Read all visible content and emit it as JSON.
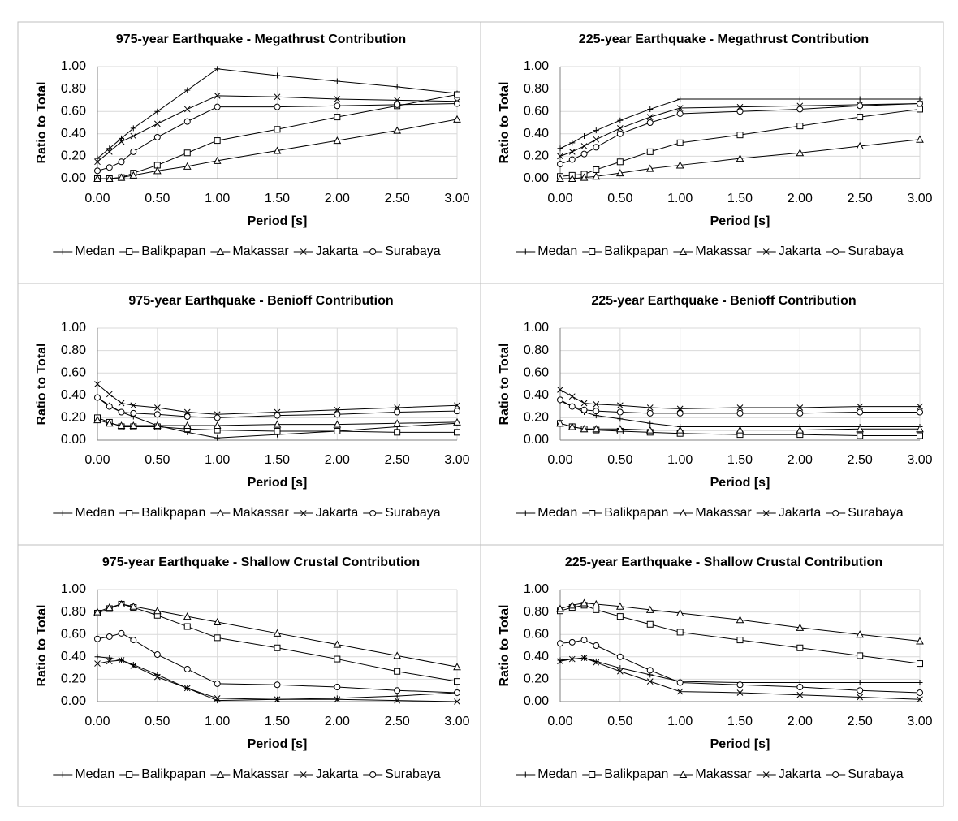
{
  "chart_data": [
    {
      "type": "line",
      "title": "975-year Earthquake - Megathrust Contribution",
      "x_label": "Period [s]",
      "y_label": "Ratio to Total",
      "grid": true,
      "xlim": [
        0,
        3
      ],
      "ylim": [
        0,
        1
      ],
      "xticks": [
        {
          "value": 0,
          "label": "0.00"
        },
        {
          "value": 0.5,
          "label": "0.50"
        },
        {
          "value": 1,
          "label": "1.00"
        },
        {
          "value": 1.5,
          "label": "1.50"
        },
        {
          "value": 2,
          "label": "2.00"
        },
        {
          "value": 2.5,
          "label": "2.50"
        },
        {
          "value": 3,
          "label": "3.00"
        }
      ],
      "yticks": [
        {
          "value": 0,
          "label": "0.00"
        },
        {
          "value": 0.2,
          "label": "0.20"
        },
        {
          "value": 0.4,
          "label": "0.40"
        },
        {
          "value": 0.6,
          "label": "0.60"
        },
        {
          "value": 0.8,
          "label": "0.80"
        },
        {
          "value": 1,
          "label": "1.00"
        }
      ],
      "x": [
        0,
        0.1,
        0.2,
        0.3,
        0.5,
        0.75,
        1,
        1.5,
        2,
        2.5,
        3
      ],
      "series": [
        {
          "name": "Medan",
          "color": "#000000",
          "marker": "plus",
          "values": [
            0.18,
            0.27,
            0.36,
            0.45,
            0.6,
            0.79,
            0.98,
            0.92,
            0.87,
            0.82,
            0.76
          ]
        },
        {
          "name": "Balikpapan",
          "color": "#000000",
          "marker": "square",
          "values": [
            0,
            0,
            0.01,
            0.05,
            0.12,
            0.23,
            0.34,
            0.44,
            0.55,
            0.65,
            0.75
          ]
        },
        {
          "name": "Makassar",
          "color": "#000000",
          "marker": "triangle",
          "values": [
            0,
            0,
            0.01,
            0.03,
            0.07,
            0.11,
            0.16,
            0.25,
            0.34,
            0.43,
            0.53
          ]
        },
        {
          "name": "Jakarta",
          "color": "#000000",
          "marker": "x",
          "values": [
            0.15,
            0.24,
            0.33,
            0.38,
            0.49,
            0.62,
            0.74,
            0.73,
            0.71,
            0.7,
            0.69
          ]
        },
        {
          "name": "Surabaya",
          "color": "#000000",
          "marker": "circle",
          "values": [
            0.07,
            0.1,
            0.15,
            0.24,
            0.37,
            0.51,
            0.64,
            0.64,
            0.65,
            0.66,
            0.67
          ]
        }
      ]
    },
    {
      "type": "line",
      "title": "225-year Earthquake - Megathrust Contribution",
      "x_label": "Period [s]",
      "y_label": "Ratio to Total",
      "grid": true,
      "xlim": [
        0,
        3
      ],
      "ylim": [
        0,
        1
      ],
      "xticks": [
        {
          "value": 0,
          "label": "0.00"
        },
        {
          "value": 0.5,
          "label": "0.50"
        },
        {
          "value": 1,
          "label": "1.00"
        },
        {
          "value": 1.5,
          "label": "1.50"
        },
        {
          "value": 2,
          "label": "2.00"
        },
        {
          "value": 2.5,
          "label": "2.50"
        },
        {
          "value": 3,
          "label": "3.00"
        }
      ],
      "yticks": [
        {
          "value": 0,
          "label": "0.00"
        },
        {
          "value": 0.2,
          "label": "0.20"
        },
        {
          "value": 0.4,
          "label": "0.40"
        },
        {
          "value": 0.6,
          "label": "0.60"
        },
        {
          "value": 0.8,
          "label": "0.80"
        },
        {
          "value": 1,
          "label": "1.00"
        }
      ],
      "x": [
        0,
        0.1,
        0.2,
        0.3,
        0.5,
        0.75,
        1,
        1.5,
        2,
        2.5,
        3
      ],
      "series": [
        {
          "name": "Medan",
          "color": "#000000",
          "marker": "plus",
          "values": [
            0.27,
            0.32,
            0.38,
            0.43,
            0.52,
            0.62,
            0.71,
            0.71,
            0.71,
            0.71,
            0.71
          ]
        },
        {
          "name": "Balikpapan",
          "color": "#000000",
          "marker": "square",
          "values": [
            0.02,
            0.03,
            0.04,
            0.08,
            0.15,
            0.24,
            0.32,
            0.39,
            0.47,
            0.55,
            0.62
          ]
        },
        {
          "name": "Makassar",
          "color": "#000000",
          "marker": "triangle",
          "values": [
            0,
            0,
            0.01,
            0.02,
            0.05,
            0.09,
            0.12,
            0.18,
            0.23,
            0.29,
            0.35
          ]
        },
        {
          "name": "Jakarta",
          "color": "#000000",
          "marker": "x",
          "values": [
            0.2,
            0.24,
            0.29,
            0.35,
            0.45,
            0.55,
            0.63,
            0.64,
            0.65,
            0.66,
            0.67
          ]
        },
        {
          "name": "Surabaya",
          "color": "#000000",
          "marker": "circle",
          "values": [
            0.13,
            0.17,
            0.22,
            0.28,
            0.4,
            0.5,
            0.58,
            0.6,
            0.62,
            0.65,
            0.67
          ]
        }
      ]
    },
    {
      "type": "line",
      "title": "975-year Earthquake - Benioff Contribution",
      "x_label": "Period [s]",
      "y_label": "Ratio to Total",
      "grid": true,
      "xlim": [
        0,
        3
      ],
      "ylim": [
        0,
        1
      ],
      "xticks": [
        {
          "value": 0,
          "label": "0.00"
        },
        {
          "value": 0.5,
          "label": "0.50"
        },
        {
          "value": 1,
          "label": "1.00"
        },
        {
          "value": 1.5,
          "label": "1.50"
        },
        {
          "value": 2,
          "label": "2.00"
        },
        {
          "value": 2.5,
          "label": "2.50"
        },
        {
          "value": 3,
          "label": "3.00"
        }
      ],
      "yticks": [
        {
          "value": 0,
          "label": "0.00"
        },
        {
          "value": 0.2,
          "label": "0.20"
        },
        {
          "value": 0.4,
          "label": "0.40"
        },
        {
          "value": 0.6,
          "label": "0.60"
        },
        {
          "value": 0.8,
          "label": "0.80"
        },
        {
          "value": 1,
          "label": "1.00"
        }
      ],
      "x": [
        0,
        0.1,
        0.2,
        0.3,
        0.5,
        0.75,
        1,
        1.5,
        2,
        2.5,
        3
      ],
      "series": [
        {
          "name": "Medan",
          "color": "#000000",
          "marker": "plus",
          "values": [
            0.38,
            0.31,
            0.25,
            0.21,
            0.13,
            0.07,
            0.02,
            0.05,
            0.08,
            0.12,
            0.15
          ]
        },
        {
          "name": "Balikpapan",
          "color": "#000000",
          "marker": "square",
          "values": [
            0.2,
            0.16,
            0.12,
            0.12,
            0.12,
            0.1,
            0.09,
            0.08,
            0.08,
            0.07,
            0.07
          ]
        },
        {
          "name": "Makassar",
          "color": "#000000",
          "marker": "triangle",
          "values": [
            0.18,
            0.15,
            0.13,
            0.13,
            0.13,
            0.13,
            0.13,
            0.14,
            0.14,
            0.15,
            0.16
          ]
        },
        {
          "name": "Jakarta",
          "color": "#000000",
          "marker": "x",
          "values": [
            0.5,
            0.41,
            0.33,
            0.31,
            0.29,
            0.25,
            0.23,
            0.25,
            0.27,
            0.29,
            0.31
          ]
        },
        {
          "name": "Surabaya",
          "color": "#000000",
          "marker": "circle",
          "values": [
            0.38,
            0.3,
            0.25,
            0.24,
            0.23,
            0.21,
            0.2,
            0.22,
            0.23,
            0.25,
            0.26
          ]
        }
      ]
    },
    {
      "type": "line",
      "title": "225-year Earthquake - Benioff Contribution",
      "x_label": "Period [s]",
      "y_label": "Ratio to Total",
      "grid": true,
      "xlim": [
        0,
        3
      ],
      "ylim": [
        0,
        1
      ],
      "xticks": [
        {
          "value": 0,
          "label": "0.00"
        },
        {
          "value": 0.5,
          "label": "0.50"
        },
        {
          "value": 1,
          "label": "1.00"
        },
        {
          "value": 1.5,
          "label": "1.50"
        },
        {
          "value": 2,
          "label": "2.00"
        },
        {
          "value": 2.5,
          "label": "2.50"
        },
        {
          "value": 3,
          "label": "3.00"
        }
      ],
      "yticks": [
        {
          "value": 0,
          "label": "0.00"
        },
        {
          "value": 0.2,
          "label": "0.20"
        },
        {
          "value": 0.4,
          "label": "0.40"
        },
        {
          "value": 0.6,
          "label": "0.60"
        },
        {
          "value": 0.8,
          "label": "0.80"
        },
        {
          "value": 1,
          "label": "1.00"
        }
      ],
      "x": [
        0,
        0.1,
        0.2,
        0.3,
        0.5,
        0.75,
        1,
        1.5,
        2,
        2.5,
        3
      ],
      "series": [
        {
          "name": "Medan",
          "color": "#000000",
          "marker": "plus",
          "values": [
            0.35,
            0.3,
            0.25,
            0.22,
            0.19,
            0.15,
            0.12,
            0.12,
            0.12,
            0.12,
            0.12
          ]
        },
        {
          "name": "Balikpapan",
          "color": "#000000",
          "marker": "square",
          "values": [
            0.15,
            0.12,
            0.1,
            0.09,
            0.08,
            0.07,
            0.06,
            0.05,
            0.05,
            0.04,
            0.04
          ]
        },
        {
          "name": "Makassar",
          "color": "#000000",
          "marker": "triangle",
          "values": [
            0.15,
            0.12,
            0.1,
            0.1,
            0.1,
            0.09,
            0.09,
            0.09,
            0.09,
            0.1,
            0.1
          ]
        },
        {
          "name": "Jakarta",
          "color": "#000000",
          "marker": "x",
          "values": [
            0.45,
            0.39,
            0.33,
            0.32,
            0.31,
            0.29,
            0.28,
            0.29,
            0.29,
            0.3,
            0.3
          ]
        },
        {
          "name": "Surabaya",
          "color": "#000000",
          "marker": "circle",
          "values": [
            0.36,
            0.3,
            0.27,
            0.26,
            0.25,
            0.24,
            0.24,
            0.24,
            0.24,
            0.25,
            0.25
          ]
        }
      ]
    },
    {
      "type": "line",
      "title": "975-year Earthquake - Shallow Crustal Contribution",
      "x_label": "Period [s]",
      "y_label": "Ratio to Total",
      "grid": true,
      "xlim": [
        0,
        3
      ],
      "ylim": [
        0,
        1
      ],
      "xticks": [
        {
          "value": 0,
          "label": "0.00"
        },
        {
          "value": 0.5,
          "label": "0.50"
        },
        {
          "value": 1,
          "label": "1.00"
        },
        {
          "value": 1.5,
          "label": "1.50"
        },
        {
          "value": 2,
          "label": "2.00"
        },
        {
          "value": 2.5,
          "label": "2.50"
        },
        {
          "value": 3,
          "label": "3.00"
        }
      ],
      "yticks": [
        {
          "value": 0,
          "label": "0.00"
        },
        {
          "value": 0.2,
          "label": "0.20"
        },
        {
          "value": 0.4,
          "label": "0.40"
        },
        {
          "value": 0.6,
          "label": "0.60"
        },
        {
          "value": 0.8,
          "label": "0.80"
        },
        {
          "value": 1,
          "label": "1.00"
        }
      ],
      "x": [
        0,
        0.1,
        0.2,
        0.3,
        0.5,
        0.75,
        1,
        1.5,
        2,
        2.5,
        3
      ],
      "series": [
        {
          "name": "Medan",
          "color": "#000000",
          "marker": "plus",
          "values": [
            0.4,
            0.39,
            0.37,
            0.33,
            0.24,
            0.12,
            0.01,
            0.02,
            0.03,
            0.05,
            0.08
          ]
        },
        {
          "name": "Balikpapan",
          "color": "#000000",
          "marker": "square",
          "values": [
            0.79,
            0.83,
            0.87,
            0.84,
            0.77,
            0.67,
            0.57,
            0.48,
            0.38,
            0.27,
            0.18
          ]
        },
        {
          "name": "Makassar",
          "color": "#000000",
          "marker": "triangle",
          "values": [
            0.8,
            0.84,
            0.87,
            0.85,
            0.81,
            0.76,
            0.71,
            0.61,
            0.51,
            0.41,
            0.31
          ]
        },
        {
          "name": "Jakarta",
          "color": "#000000",
          "marker": "x",
          "values": [
            0.34,
            0.36,
            0.37,
            0.32,
            0.22,
            0.12,
            0.03,
            0.02,
            0.02,
            0.01,
            0
          ]
        },
        {
          "name": "Surabaya",
          "color": "#000000",
          "marker": "circle",
          "values": [
            0.56,
            0.58,
            0.61,
            0.55,
            0.42,
            0.29,
            0.16,
            0.15,
            0.13,
            0.1,
            0.08
          ]
        }
      ]
    },
    {
      "type": "line",
      "title": "225-year Earthquake - Shallow Crustal Contribution",
      "x_label": "Period [s]",
      "y_label": "Ratio to Total",
      "grid": true,
      "xlim": [
        0,
        3
      ],
      "ylim": [
        0,
        1
      ],
      "xticks": [
        {
          "value": 0,
          "label": "0.00"
        },
        {
          "value": 0.5,
          "label": "0.50"
        },
        {
          "value": 1,
          "label": "1.00"
        },
        {
          "value": 1.5,
          "label": "1.50"
        },
        {
          "value": 2,
          "label": "2.00"
        },
        {
          "value": 2.5,
          "label": "2.50"
        },
        {
          "value": 3,
          "label": "3.00"
        }
      ],
      "yticks": [
        {
          "value": 0,
          "label": "0.00"
        },
        {
          "value": 0.2,
          "label": "0.20"
        },
        {
          "value": 0.4,
          "label": "0.40"
        },
        {
          "value": 0.6,
          "label": "0.60"
        },
        {
          "value": 0.8,
          "label": "0.80"
        },
        {
          "value": 1,
          "label": "1.00"
        }
      ],
      "x": [
        0,
        0.1,
        0.2,
        0.3,
        0.5,
        0.75,
        1,
        1.5,
        2,
        2.5,
        3
      ],
      "series": [
        {
          "name": "Medan",
          "color": "#000000",
          "marker": "plus",
          "values": [
            0.37,
            0.38,
            0.39,
            0.36,
            0.3,
            0.24,
            0.18,
            0.17,
            0.17,
            0.17,
            0.17
          ]
        },
        {
          "name": "Balikpapan",
          "color": "#000000",
          "marker": "square",
          "values": [
            0.81,
            0.84,
            0.86,
            0.82,
            0.76,
            0.69,
            0.62,
            0.55,
            0.48,
            0.41,
            0.34
          ]
        },
        {
          "name": "Makassar",
          "color": "#000000",
          "marker": "triangle",
          "values": [
            0.83,
            0.86,
            0.88,
            0.87,
            0.85,
            0.82,
            0.79,
            0.73,
            0.66,
            0.6,
            0.54
          ]
        },
        {
          "name": "Jakarta",
          "color": "#000000",
          "marker": "x",
          "values": [
            0.36,
            0.38,
            0.39,
            0.35,
            0.27,
            0.18,
            0.09,
            0.08,
            0.06,
            0.04,
            0.02
          ]
        },
        {
          "name": "Surabaya",
          "color": "#000000",
          "marker": "circle",
          "values": [
            0.52,
            0.53,
            0.55,
            0.5,
            0.4,
            0.28,
            0.17,
            0.15,
            0.13,
            0.1,
            0.08
          ]
        }
      ]
    }
  ]
}
